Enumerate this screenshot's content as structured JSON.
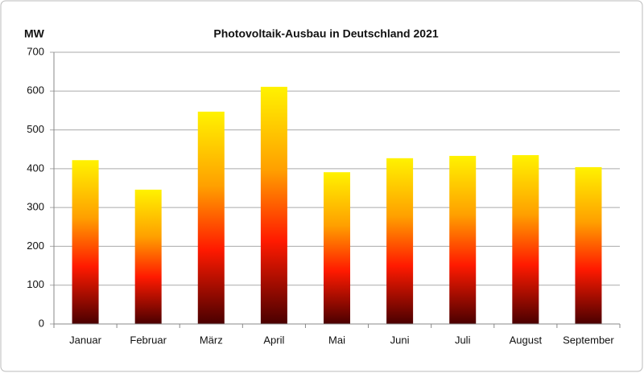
{
  "chart_data": {
    "type": "bar",
    "title": "Photovoltaik-Ausbau in Deutschland 2021",
    "y_label": "MW",
    "categories": [
      "Januar",
      "Februar",
      "März",
      "April",
      "Mai",
      "Juni",
      "Juli",
      "August",
      "September"
    ],
    "values": [
      422,
      346,
      547,
      611,
      391,
      427,
      433,
      435,
      404
    ],
    "ylim": [
      0,
      700
    ],
    "yticks": [
      0,
      100,
      200,
      300,
      400,
      500,
      600,
      700
    ],
    "grid": true
  }
}
